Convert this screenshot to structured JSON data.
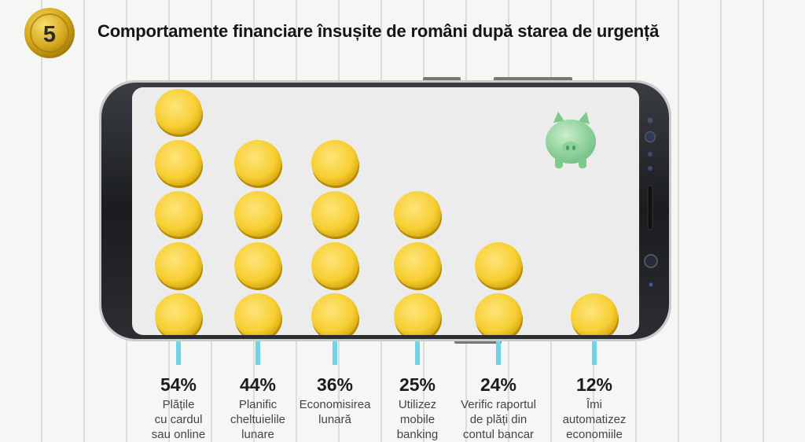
{
  "badge": {
    "number": "5"
  },
  "title": "Comportamente financiare însușite de români după starea de urgență",
  "chart_data": {
    "type": "bar",
    "categories": [
      "Plățile cu cardul sau online",
      "Planific cheltuielile lunare",
      "Economisirea lunară",
      "Utilizez mobile banking",
      "Verific raportul de plăți din contul bancar",
      "Îmi automatizez economiile"
    ],
    "values": [
      54,
      44,
      36,
      25,
      24,
      12
    ],
    "value_labels": [
      "54%",
      "44%",
      "36%",
      "25%",
      "24%",
      "12%"
    ],
    "unit": "%"
  },
  "items": [
    {
      "value_label": "54%",
      "label_lines": [
        "Plățile",
        "cu cardul",
        "sau online"
      ]
    },
    {
      "value_label": "44%",
      "label_lines": [
        "Planific",
        "cheltuielile",
        "lunare"
      ]
    },
    {
      "value_label": "36%",
      "label_lines": [
        "Economisirea",
        "lunară"
      ]
    },
    {
      "value_label": "25%",
      "label_lines": [
        "Utilizez",
        "mobile",
        "banking"
      ]
    },
    {
      "value_label": "24%",
      "label_lines": [
        "Verific raportul",
        "de plăți din",
        "contul bancar"
      ]
    },
    {
      "value_label": "12%",
      "label_lines": [
        "Îmi",
        "automatizez",
        "economiile"
      ]
    }
  ],
  "colors": {
    "coin": "#f7cf32",
    "coin_dark": "#d8a90f",
    "connector": "#6fd3ea",
    "badge_gold": "#c99a16",
    "piggy": "#9bd9a3"
  },
  "icons": {
    "badge": "gold-coin-icon",
    "piggy": "piggy-bank-icon"
  }
}
